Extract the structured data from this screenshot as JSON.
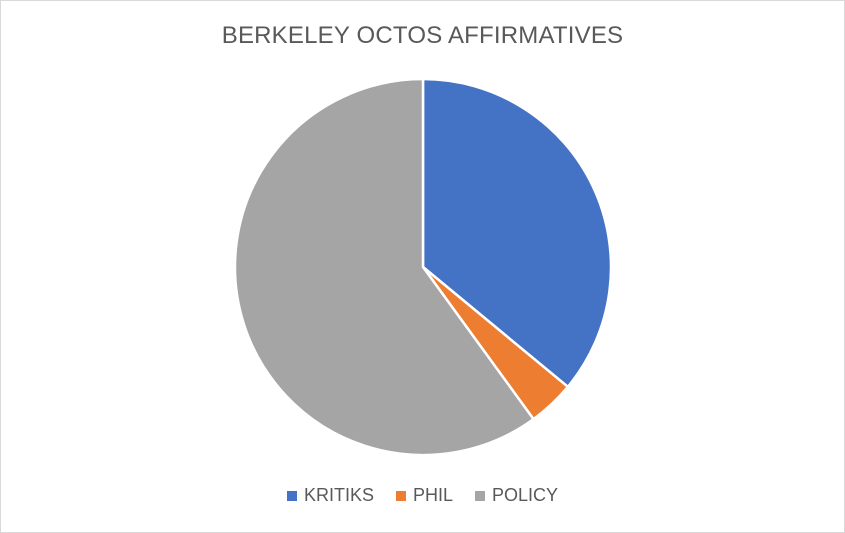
{
  "chart_data": {
    "type": "pie",
    "title": "BERKELEY OCTOS AFFIRMATIVES",
    "categories": [
      "KRITIKS",
      "PHIL",
      "POLICY"
    ],
    "values": [
      36,
      4,
      60
    ],
    "colors": [
      "#4472c4",
      "#ed7d31",
      "#a5a5a5"
    ],
    "legend_position": "bottom",
    "start_angle_deg": 0,
    "direction": "clockwise"
  }
}
